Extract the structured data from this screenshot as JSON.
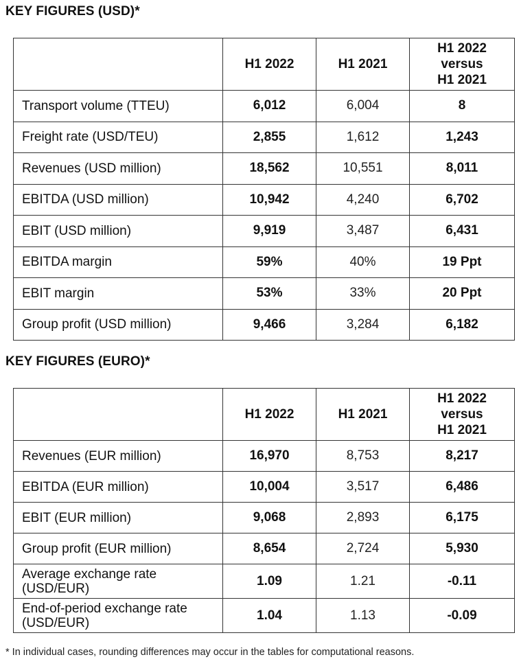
{
  "usd": {
    "heading": "KEY FIGURES (USD)*",
    "columns": [
      "",
      "H1 2022",
      "H1 2021",
      "H1 2022 versus H1 2021"
    ],
    "header": {
      "col1": "H1 2022",
      "col2": "H1 2021",
      "col3_line1": "H1 2022",
      "col3_line2": "versus",
      "col3_line3": "H1 2021"
    },
    "rows": [
      {
        "label": "Transport volume (TTEU)",
        "h1_2022": "6,012",
        "h1_2021": "6,004",
        "change": "8"
      },
      {
        "label": "Freight rate (USD/TEU)",
        "h1_2022": "2,855",
        "h1_2021": "1,612",
        "change": "1,243"
      },
      {
        "label": "Revenues (USD million)",
        "h1_2022": "18,562",
        "h1_2021": "10,551",
        "change": "8,011"
      },
      {
        "label": "EBITDA (USD million)",
        "h1_2022": "10,942",
        "h1_2021": "4,240",
        "change": "6,702"
      },
      {
        "label": "EBIT (USD million)",
        "h1_2022": "9,919",
        "h1_2021": "3,487",
        "change": "6,431"
      },
      {
        "label": "EBITDA margin",
        "h1_2022": "59%",
        "h1_2021": "40%",
        "change": "19 Ppt"
      },
      {
        "label": "EBIT margin",
        "h1_2022": "53%",
        "h1_2021": "33%",
        "change": "20 Ppt"
      },
      {
        "label": "Group profit (USD million)",
        "h1_2022": "9,466",
        "h1_2021": "3,284",
        "change": "6,182"
      }
    ]
  },
  "eur": {
    "heading": "KEY FIGURES (EURO)*",
    "header": {
      "col1": "H1 2022",
      "col2": "H1 2021",
      "col3_line1": "H1 2022",
      "col3_line2": "versus",
      "col3_line3": "H1 2021"
    },
    "rows": [
      {
        "label": "Revenues (EUR million)",
        "h1_2022": "16,970",
        "h1_2021": "8,753",
        "change": "8,217"
      },
      {
        "label": "EBITDA (EUR million)",
        "h1_2022": "10,004",
        "h1_2021": "3,517",
        "change": "6,486"
      },
      {
        "label": "EBIT (EUR million)",
        "h1_2022": "9,068",
        "h1_2021": "2,893",
        "change": "6,175"
      },
      {
        "label": "Group profit (EUR million)",
        "h1_2022": "8,654",
        "h1_2021": "2,724",
        "change": "5,930"
      },
      {
        "label_line1": "Average exchange rate",
        "label_line2": "(USD/EUR)",
        "h1_2022": "1.09",
        "h1_2021": "1.21",
        "change": "-0.11"
      },
      {
        "label_line1": "End-of-period exchange rate",
        "label_line2": "(USD/EUR)",
        "h1_2022": "1.04",
        "h1_2021": "1.13",
        "change": "-0.09"
      }
    ]
  },
  "footnote": "* In individual cases, rounding differences may occur in the tables for computational reasons."
}
